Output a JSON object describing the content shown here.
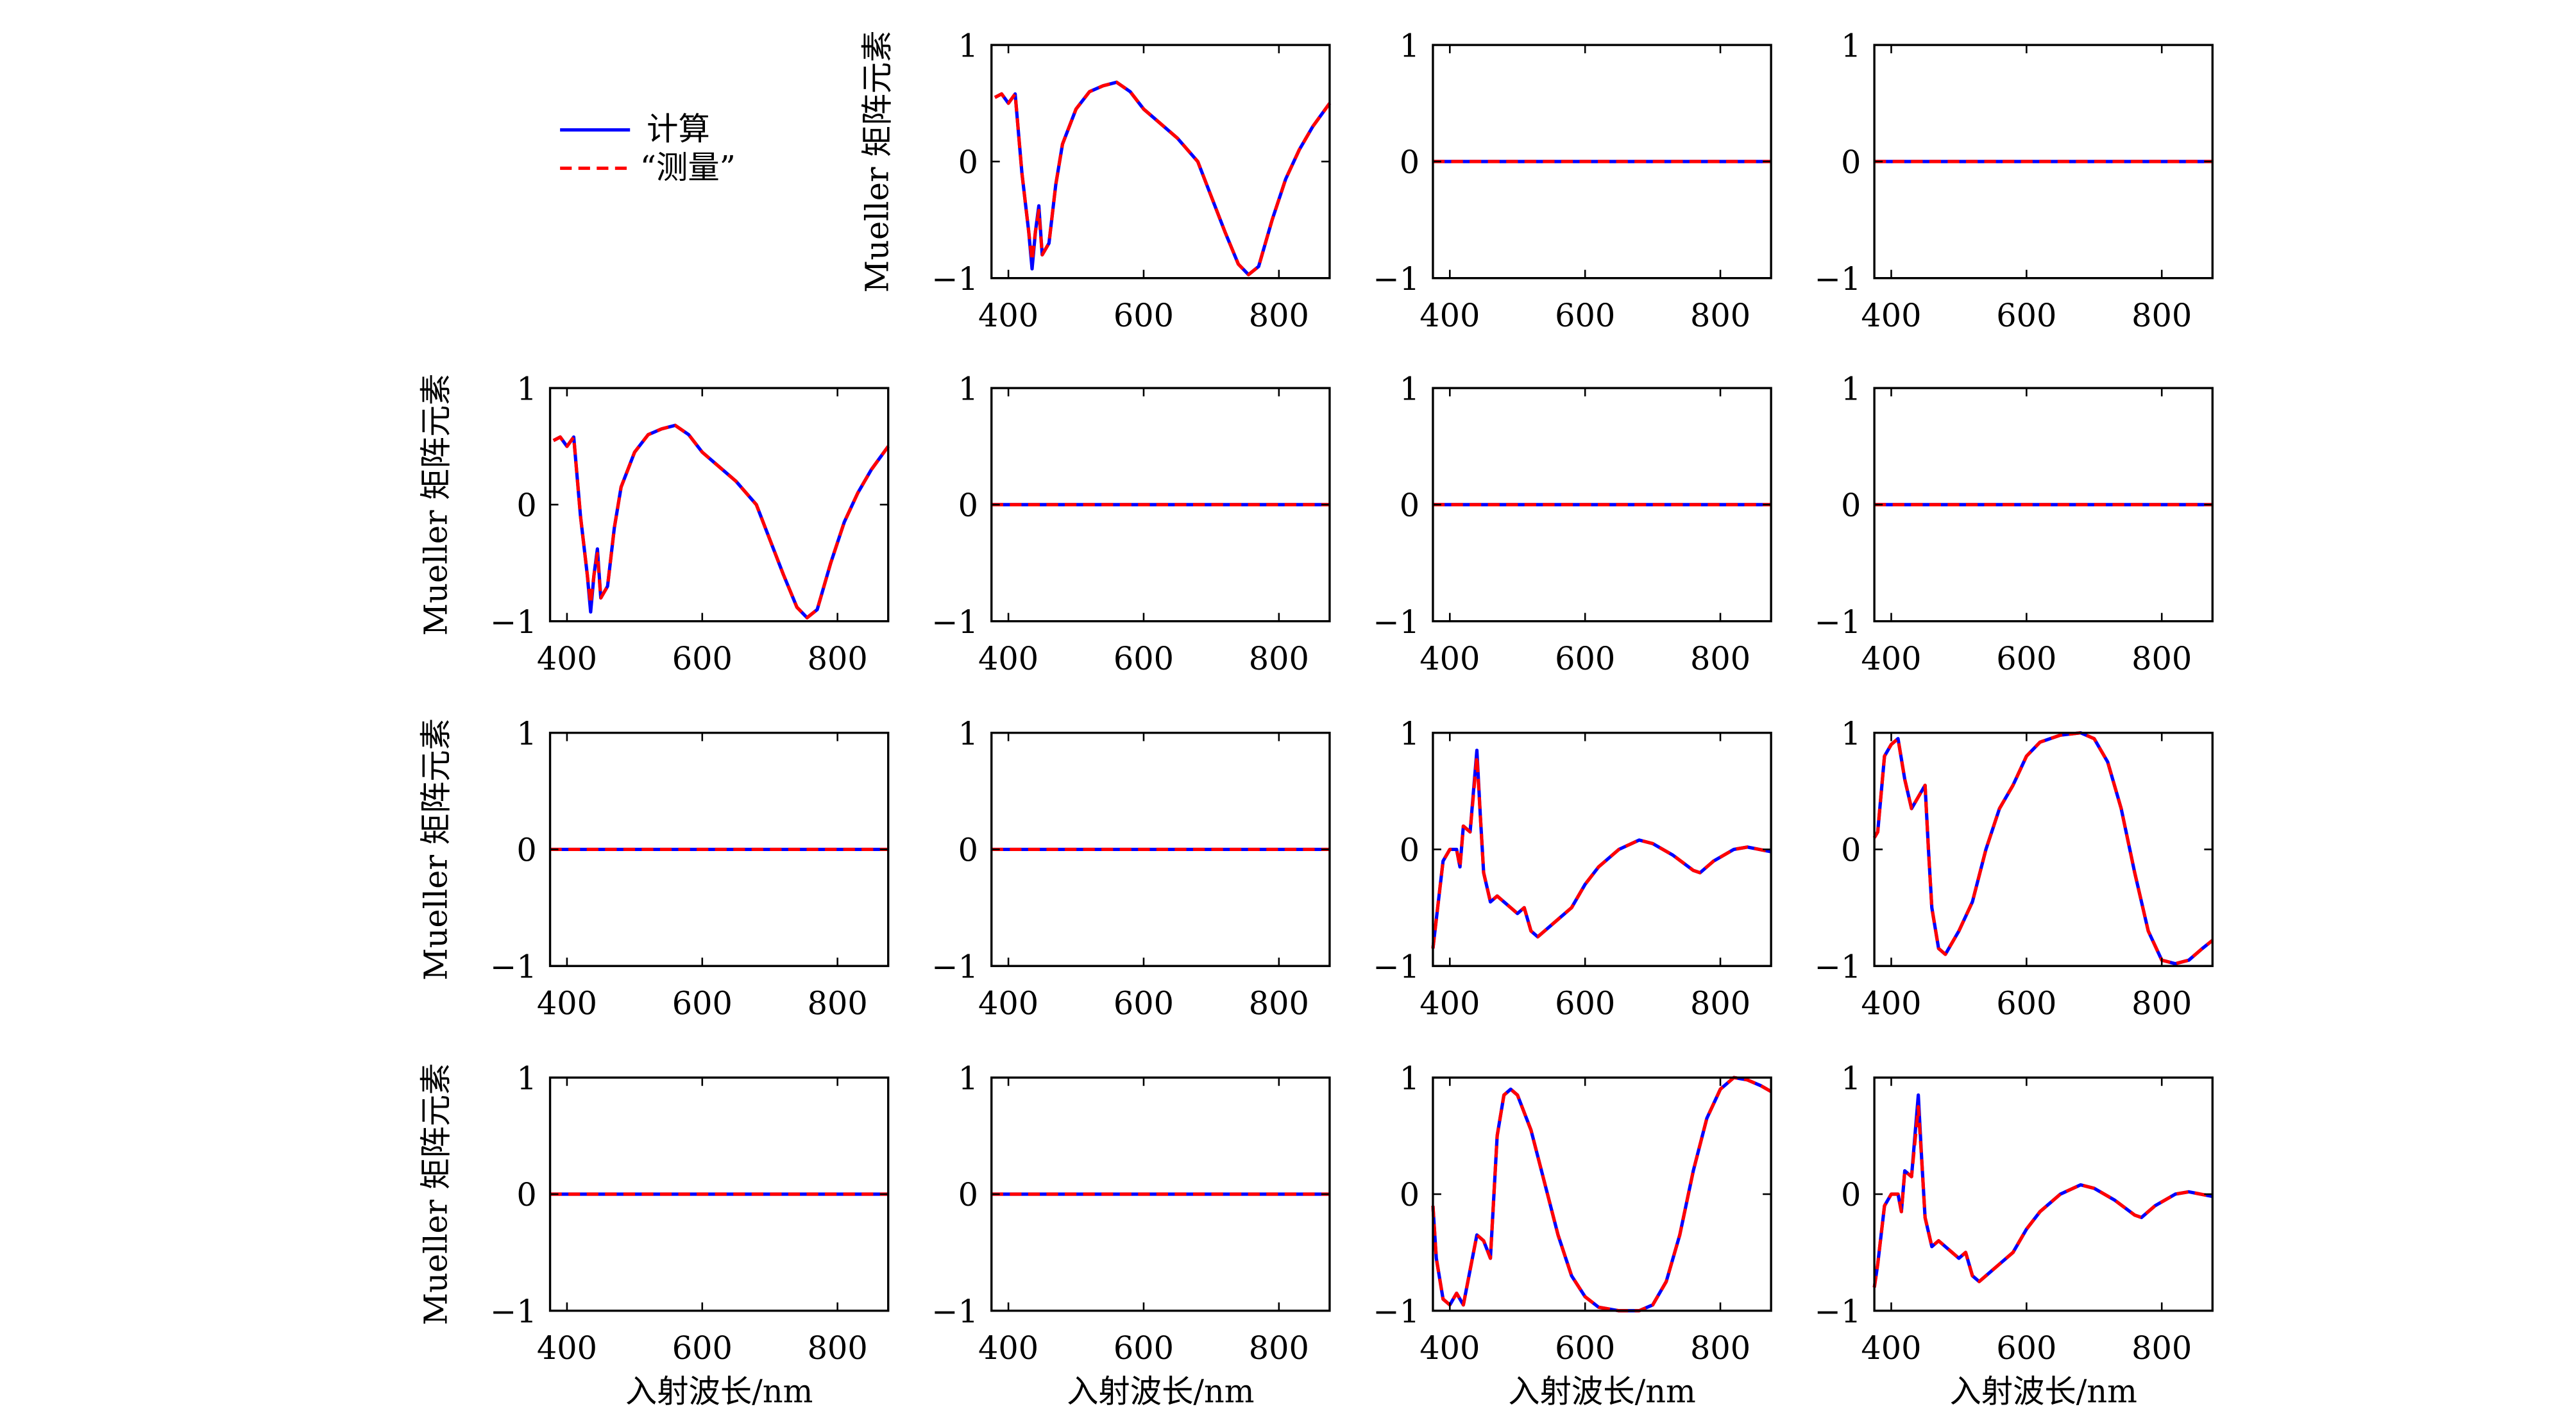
{
  "chart_data": [
    {
      "type": "line",
      "ylabel": "Mueller 矩阵元素",
      "xlim": [
        375,
        875
      ],
      "ylim": [
        -1,
        1
      ],
      "xticks": [
        400,
        600,
        800
      ],
      "yticks": [
        {
          "value": -1,
          "label": "−1"
        },
        0,
        1
      ],
      "x": [
        380,
        390,
        400,
        410,
        420,
        430,
        435,
        440,
        445,
        450,
        460,
        470,
        480,
        500,
        520,
        540,
        560,
        580,
        600,
        620,
        650,
        680,
        700,
        720,
        740,
        755,
        770,
        790,
        810,
        830,
        850,
        875
      ],
      "series": [
        {
          "name": "计算",
          "color": "#0000ff",
          "values": [
            0.55,
            0.58,
            0.5,
            0.58,
            -0.1,
            -0.6,
            -0.92,
            -0.6,
            -0.38,
            -0.8,
            -0.7,
            -0.2,
            0.15,
            0.45,
            0.6,
            0.65,
            0.68,
            0.6,
            0.45,
            0.35,
            0.2,
            0.0,
            -0.3,
            -0.6,
            -0.88,
            -0.97,
            -0.9,
            -0.5,
            -0.15,
            0.1,
            0.3,
            0.5
          ]
        },
        {
          "name": "“测量”",
          "color": "#ff0000",
          "values": [
            0.55,
            0.58,
            0.5,
            0.58,
            -0.1,
            -0.6,
            -0.85,
            -0.6,
            -0.42,
            -0.8,
            -0.7,
            -0.2,
            0.15,
            0.45,
            0.6,
            0.65,
            0.68,
            0.6,
            0.45,
            0.35,
            0.2,
            0.0,
            -0.3,
            -0.6,
            -0.88,
            -0.97,
            -0.9,
            -0.5,
            -0.15,
            0.1,
            0.3,
            0.5
          ]
        }
      ]
    },
    {
      "type": "line",
      "xlim": [
        375,
        875
      ],
      "ylim": [
        -1,
        1
      ],
      "xticks": [
        400,
        600,
        800
      ],
      "yticks": [
        {
          "value": -1,
          "label": "−1"
        },
        0,
        1
      ],
      "x": [
        375,
        875
      ],
      "series": [
        {
          "name": "计算",
          "color": "#0000ff",
          "values": [
            0,
            0
          ]
        },
        {
          "name": "“测量”",
          "color": "#ff0000",
          "values": [
            0,
            0
          ]
        }
      ]
    },
    {
      "type": "line",
      "xlim": [
        375,
        875
      ],
      "ylim": [
        -1,
        1
      ],
      "xticks": [
        400,
        600,
        800
      ],
      "yticks": [
        {
          "value": -1,
          "label": "−1"
        },
        0,
        1
      ],
      "x": [
        375,
        875
      ],
      "series": [
        {
          "name": "计算",
          "color": "#0000ff",
          "values": [
            0,
            0
          ]
        },
        {
          "name": "“测量”",
          "color": "#ff0000",
          "values": [
            0,
            0
          ]
        }
      ]
    },
    {
      "type": "line",
      "ylabel": "Mueller 矩阵元素",
      "xlim": [
        375,
        875
      ],
      "ylim": [
        -1,
        1
      ],
      "xticks": [
        400,
        600,
        800
      ],
      "yticks": [
        {
          "value": -1,
          "label": "−1"
        },
        0,
        1
      ],
      "x": [
        380,
        390,
        400,
        410,
        420,
        430,
        435,
        440,
        445,
        450,
        460,
        470,
        480,
        500,
        520,
        540,
        560,
        580,
        600,
        620,
        650,
        680,
        700,
        720,
        740,
        755,
        770,
        790,
        810,
        830,
        850,
        875
      ],
      "series": [
        {
          "name": "计算",
          "color": "#0000ff",
          "values": [
            0.55,
            0.58,
            0.5,
            0.58,
            -0.1,
            -0.6,
            -0.92,
            -0.6,
            -0.38,
            -0.8,
            -0.7,
            -0.2,
            0.15,
            0.45,
            0.6,
            0.65,
            0.68,
            0.6,
            0.45,
            0.35,
            0.2,
            0.0,
            -0.3,
            -0.6,
            -0.88,
            -0.97,
            -0.9,
            -0.5,
            -0.15,
            0.1,
            0.3,
            0.5
          ]
        },
        {
          "name": "“测量”",
          "color": "#ff0000",
          "values": [
            0.55,
            0.58,
            0.5,
            0.58,
            -0.1,
            -0.6,
            -0.85,
            -0.6,
            -0.42,
            -0.8,
            -0.7,
            -0.2,
            0.15,
            0.45,
            0.6,
            0.65,
            0.68,
            0.6,
            0.45,
            0.35,
            0.2,
            0.0,
            -0.3,
            -0.6,
            -0.88,
            -0.97,
            -0.9,
            -0.5,
            -0.15,
            0.1,
            0.3,
            0.5
          ]
        }
      ]
    },
    {
      "type": "line",
      "xlim": [
        375,
        875
      ],
      "ylim": [
        -1,
        1
      ],
      "xticks": [
        400,
        600,
        800
      ],
      "yticks": [
        {
          "value": -1,
          "label": "−1"
        },
        0,
        1
      ],
      "x": [
        375,
        875
      ],
      "series": [
        {
          "name": "计算",
          "color": "#0000ff",
          "values": [
            0,
            0
          ]
        },
        {
          "name": "“测量”",
          "color": "#ff0000",
          "values": [
            0,
            0
          ]
        }
      ]
    },
    {
      "type": "line",
      "xlim": [
        375,
        875
      ],
      "ylim": [
        -1,
        1
      ],
      "xticks": [
        400,
        600,
        800
      ],
      "yticks": [
        {
          "value": -1,
          "label": "−1"
        },
        0,
        1
      ],
      "x": [
        375,
        875
      ],
      "series": [
        {
          "name": "计算",
          "color": "#0000ff",
          "values": [
            0,
            0
          ]
        },
        {
          "name": "“测量”",
          "color": "#ff0000",
          "values": [
            0,
            0
          ]
        }
      ]
    },
    {
      "type": "line",
      "xlim": [
        375,
        875
      ],
      "ylim": [
        -1,
        1
      ],
      "xticks": [
        400,
        600,
        800
      ],
      "yticks": [
        {
          "value": -1,
          "label": "−1"
        },
        0,
        1
      ],
      "x": [
        375,
        875
      ],
      "series": [
        {
          "name": "计算",
          "color": "#0000ff",
          "values": [
            0,
            0
          ]
        },
        {
          "name": "“测量”",
          "color": "#ff0000",
          "values": [
            0,
            0
          ]
        }
      ]
    },
    {
      "type": "line",
      "ylabel": "Mueller 矩阵元素",
      "xlim": [
        375,
        875
      ],
      "ylim": [
        -1,
        1
      ],
      "xticks": [
        400,
        600,
        800
      ],
      "yticks": [
        {
          "value": -1,
          "label": "−1"
        },
        0,
        1
      ],
      "x": [
        375,
        875
      ],
      "series": [
        {
          "name": "计算",
          "color": "#0000ff",
          "values": [
            0,
            0
          ]
        },
        {
          "name": "“测量”",
          "color": "#ff0000",
          "values": [
            0,
            0
          ]
        }
      ]
    },
    {
      "type": "line",
      "xlim": [
        375,
        875
      ],
      "ylim": [
        -1,
        1
      ],
      "xticks": [
        400,
        600,
        800
      ],
      "yticks": [
        {
          "value": -1,
          "label": "−1"
        },
        0,
        1
      ],
      "x": [
        375,
        875
      ],
      "series": [
        {
          "name": "计算",
          "color": "#0000ff",
          "values": [
            0,
            0
          ]
        },
        {
          "name": "“测量”",
          "color": "#ff0000",
          "values": [
            0,
            0
          ]
        }
      ]
    },
    {
      "type": "line",
      "xlim": [
        375,
        875
      ],
      "ylim": [
        -1,
        1
      ],
      "xticks": [
        400,
        600,
        800
      ],
      "yticks": [
        {
          "value": -1,
          "label": "−1"
        },
        0,
        1
      ],
      "x": [
        375,
        380,
        390,
        400,
        410,
        415,
        420,
        430,
        440,
        445,
        450,
        460,
        470,
        480,
        490,
        500,
        510,
        520,
        530,
        540,
        560,
        580,
        600,
        620,
        650,
        680,
        700,
        730,
        760,
        770,
        790,
        820,
        840,
        875
      ],
      "series": [
        {
          "name": "计算",
          "color": "#0000ff",
          "values": [
            -0.85,
            -0.6,
            -0.1,
            0.0,
            0.0,
            -0.15,
            0.2,
            0.15,
            0.85,
            0.3,
            -0.2,
            -0.45,
            -0.4,
            -0.45,
            -0.5,
            -0.55,
            -0.5,
            -0.7,
            -0.75,
            -0.7,
            -0.6,
            -0.5,
            -0.3,
            -0.15,
            0.0,
            0.08,
            0.05,
            -0.05,
            -0.18,
            -0.2,
            -0.1,
            0.0,
            0.02,
            -0.02
          ]
        },
        {
          "name": "“测量”",
          "color": "#ff0000",
          "values": [
            -0.85,
            -0.6,
            -0.1,
            0.0,
            0.0,
            -0.15,
            0.2,
            0.15,
            0.8,
            0.3,
            -0.2,
            -0.45,
            -0.4,
            -0.45,
            -0.5,
            -0.55,
            -0.5,
            -0.7,
            -0.75,
            -0.7,
            -0.6,
            -0.5,
            -0.3,
            -0.15,
            0.0,
            0.08,
            0.05,
            -0.05,
            -0.18,
            -0.2,
            -0.1,
            0.0,
            0.02,
            -0.02
          ]
        }
      ]
    },
    {
      "type": "line",
      "xlim": [
        375,
        875
      ],
      "ylim": [
        -1,
        1
      ],
      "xticks": [
        400,
        600,
        800
      ],
      "yticks": [
        {
          "value": -1,
          "label": "−1"
        },
        0,
        1
      ],
      "x": [
        375,
        380,
        390,
        400,
        410,
        420,
        430,
        440,
        450,
        455,
        460,
        470,
        480,
        500,
        520,
        540,
        560,
        580,
        600,
        620,
        650,
        680,
        700,
        720,
        740,
        760,
        780,
        800,
        820,
        840,
        860,
        875
      ],
      "series": [
        {
          "name": "计算",
          "color": "#0000ff",
          "values": [
            0.1,
            0.15,
            0.8,
            0.9,
            0.95,
            0.6,
            0.35,
            0.45,
            0.55,
            0.0,
            -0.5,
            -0.85,
            -0.9,
            -0.7,
            -0.45,
            0.0,
            0.35,
            0.55,
            0.8,
            0.92,
            0.98,
            1.0,
            0.95,
            0.75,
            0.35,
            -0.2,
            -0.7,
            -0.95,
            -0.98,
            -0.95,
            -0.85,
            -0.78
          ]
        },
        {
          "name": "“测量”",
          "color": "#ff0000",
          "values": [
            0.1,
            0.15,
            0.8,
            0.9,
            0.95,
            0.6,
            0.35,
            0.45,
            0.55,
            0.0,
            -0.5,
            -0.85,
            -0.9,
            -0.7,
            -0.45,
            0.0,
            0.35,
            0.55,
            0.8,
            0.92,
            0.98,
            1.0,
            0.95,
            0.75,
            0.35,
            -0.2,
            -0.7,
            -0.95,
            -0.98,
            -0.95,
            -0.85,
            -0.78
          ]
        }
      ]
    },
    {
      "type": "line",
      "ylabel": "Mueller 矩阵元素",
      "xlabel": "入射波长/nm",
      "xlim": [
        375,
        875
      ],
      "ylim": [
        -1,
        1
      ],
      "xticks": [
        400,
        600,
        800
      ],
      "yticks": [
        {
          "value": -1,
          "label": "−1"
        },
        0,
        1
      ],
      "x": [
        375,
        875
      ],
      "series": [
        {
          "name": "计算",
          "color": "#0000ff",
          "values": [
            0,
            0
          ]
        },
        {
          "name": "“测量”",
          "color": "#ff0000",
          "values": [
            0,
            0
          ]
        }
      ]
    },
    {
      "type": "line",
      "xlabel": "入射波长/nm",
      "xlim": [
        375,
        875
      ],
      "ylim": [
        -1,
        1
      ],
      "xticks": [
        400,
        600,
        800
      ],
      "yticks": [
        {
          "value": -1,
          "label": "−1"
        },
        0,
        1
      ],
      "x": [
        375,
        875
      ],
      "series": [
        {
          "name": "计算",
          "color": "#0000ff",
          "values": [
            0,
            0
          ]
        },
        {
          "name": "“测量”",
          "color": "#ff0000",
          "values": [
            0,
            0
          ]
        }
      ]
    },
    {
      "type": "line",
      "xlabel": "入射波长/nm",
      "xlim": [
        375,
        875
      ],
      "ylim": [
        -1,
        1
      ],
      "xticks": [
        400,
        600,
        800
      ],
      "yticks": [
        {
          "value": -1,
          "label": "−1"
        },
        0,
        1
      ],
      "x": [
        375,
        380,
        390,
        400,
        410,
        420,
        430,
        440,
        450,
        460,
        470,
        480,
        490,
        500,
        520,
        540,
        560,
        580,
        600,
        620,
        650,
        680,
        700,
        720,
        740,
        760,
        780,
        800,
        820,
        840,
        860,
        875
      ],
      "series": [
        {
          "name": "计算",
          "color": "#0000ff",
          "values": [
            -0.1,
            -0.55,
            -0.9,
            -0.95,
            -0.85,
            -0.95,
            -0.65,
            -0.35,
            -0.4,
            -0.55,
            0.5,
            0.85,
            0.9,
            0.85,
            0.55,
            0.1,
            -0.35,
            -0.7,
            -0.88,
            -0.97,
            -1.0,
            -1.0,
            -0.95,
            -0.75,
            -0.35,
            0.2,
            0.65,
            0.9,
            1.0,
            0.98,
            0.93,
            0.88
          ]
        },
        {
          "name": "“测量”",
          "color": "#ff0000",
          "values": [
            -0.1,
            -0.55,
            -0.9,
            -0.95,
            -0.85,
            -0.95,
            -0.65,
            -0.35,
            -0.4,
            -0.55,
            0.5,
            0.85,
            0.9,
            0.85,
            0.55,
            0.1,
            -0.35,
            -0.7,
            -0.88,
            -0.97,
            -1.0,
            -1.0,
            -0.95,
            -0.75,
            -0.35,
            0.2,
            0.65,
            0.9,
            1.0,
            0.98,
            0.93,
            0.88
          ]
        }
      ]
    },
    {
      "type": "line",
      "xlabel": "入射波长/nm",
      "xlim": [
        375,
        875
      ],
      "ylim": [
        -1,
        1
      ],
      "xticks": [
        400,
        600,
        800
      ],
      "yticks": [
        {
          "value": -1,
          "label": "−1"
        },
        0,
        1
      ],
      "x": [
        375,
        380,
        390,
        400,
        410,
        415,
        420,
        430,
        440,
        445,
        450,
        460,
        470,
        480,
        490,
        500,
        510,
        520,
        530,
        540,
        560,
        580,
        600,
        620,
        650,
        680,
        700,
        730,
        760,
        770,
        790,
        820,
        840,
        875
      ],
      "series": [
        {
          "name": "计算",
          "color": "#0000ff",
          "values": [
            -0.8,
            -0.6,
            -0.1,
            0.0,
            0.0,
            -0.15,
            0.2,
            0.15,
            0.85,
            0.3,
            -0.2,
            -0.45,
            -0.4,
            -0.45,
            -0.5,
            -0.55,
            -0.5,
            -0.7,
            -0.75,
            -0.7,
            -0.6,
            -0.5,
            -0.3,
            -0.15,
            0.0,
            0.08,
            0.05,
            -0.05,
            -0.18,
            -0.2,
            -0.1,
            0.0,
            0.02,
            -0.02
          ]
        },
        {
          "name": "“测量”",
          "color": "#ff0000",
          "values": [
            -0.8,
            -0.6,
            -0.1,
            0.0,
            0.0,
            -0.15,
            0.2,
            0.15,
            0.75,
            0.3,
            -0.2,
            -0.45,
            -0.4,
            -0.45,
            -0.5,
            -0.55,
            -0.5,
            -0.7,
            -0.75,
            -0.7,
            -0.6,
            -0.5,
            -0.3,
            -0.15,
            0.0,
            0.08,
            0.05,
            -0.05,
            -0.18,
            -0.2,
            -0.1,
            0.0,
            0.02,
            -0.02
          ]
        }
      ]
    }
  ]
}
